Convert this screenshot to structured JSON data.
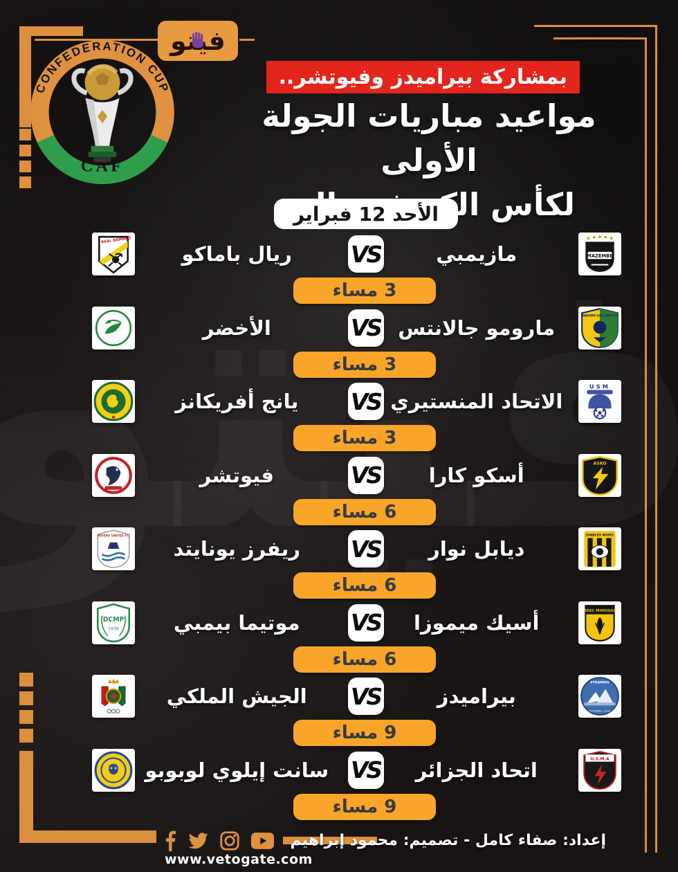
{
  "brand": {
    "veto_logo_text": "فيتو"
  },
  "caf_logo": {
    "ring_text": "CONFEDERATION CUP",
    "caf_label": "CAF"
  },
  "header": {
    "kicker": "بمشاركة بيراميدز وفيوتشر..",
    "title_line1": "مواعيد مباريات الجولة الأولى",
    "title_line2": "لكأس الكونفيدرالية",
    "date_badge": "الأحد 12 فبراير"
  },
  "vs_label": "VS",
  "matches": [
    {
      "right_team": "مازيمبي",
      "right_logo": "mazembe",
      "left_team": "ريال باماكو",
      "left_logo": "real-bamako",
      "time": "3 مساء"
    },
    {
      "right_team": "مارومو جالانتس",
      "right_logo": "marumo-gallants",
      "left_team": "الأخضر",
      "left_logo": "al-akhdar",
      "time": "3 مساء"
    },
    {
      "right_team": "الاتحاد المنستيري",
      "right_logo": "us-monastir",
      "left_team": "يانج أفريكانز",
      "left_logo": "young-africans",
      "time": "3 مساء"
    },
    {
      "right_team": "أسكو كارا",
      "right_logo": "asko-kara",
      "left_team": "فيوتشر",
      "left_logo": "future-fc",
      "time": "6 مساء"
    },
    {
      "right_team": "ديابل نوار",
      "right_logo": "diables-noirs",
      "left_team": "ريفرز يونايتد",
      "left_logo": "rivers-united",
      "time": "6 مساء"
    },
    {
      "right_team": "أسيك ميموزا",
      "right_logo": "asec-mimosas",
      "left_team": "موتيما بيمبي",
      "left_logo": "motema-pembe",
      "time": "6 مساء"
    },
    {
      "right_team": "بيراميدز",
      "right_logo": "pyramids",
      "left_team": "الجيش الملكي",
      "left_logo": "as-far",
      "time": "9 مساء"
    },
    {
      "right_team": "اتحاد الجزائر",
      "right_logo": "usm-alger",
      "left_team": "سانت إيلوي لوبوبو",
      "left_logo": "saint-eloi-lupopo",
      "time": "9 مساء"
    }
  ],
  "logo_texts": {
    "mazembe": "MAZEMBE",
    "real_bamako": "REAL BAMAKO",
    "marumo": "MARUMO GALLANTS FC",
    "usm": "USM",
    "diables": "DIABLES NOIRS",
    "rivers": "RIVERS UNITED FC",
    "asec": "ASEC MIMOSAS",
    "dcmp": "DCMP",
    "dcmp_year": "1936",
    "pyramids": "PYRAMIDS",
    "pyramids_sub": "FOOTBALL CLUB",
    "usma": "U.S.M.A",
    "asko": "ASKO"
  },
  "footer": {
    "website": "www.vetogate.com",
    "credits": "إعداد: صفاء كامل  -  تصميم: محمود إبراهيم",
    "social": [
      "facebook",
      "twitter",
      "instagram",
      "youtube"
    ]
  },
  "colors": {
    "accent_orange": "#DC8F3D",
    "pill_orange": "#F8A52A",
    "banner_red": "#E3251D",
    "caf_green": "#2F9E4B",
    "background": "#1B1715"
  }
}
